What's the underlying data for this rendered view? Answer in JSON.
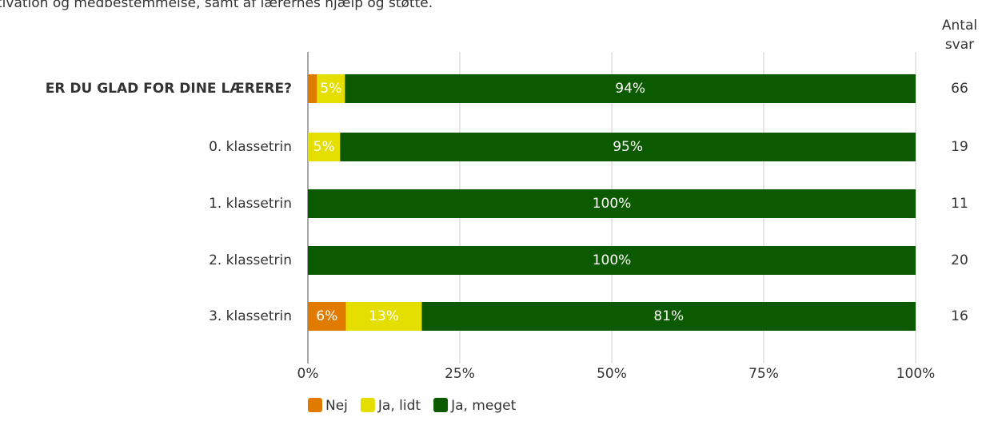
{
  "chart_data": {
    "type": "stacked_bar_horizontal",
    "subtitle": "tivation og medbestemmelse, samt af lærernes hjælp og støtte.",
    "categories": [
      "ER DU GLAD FOR DINE LÆRERE?",
      "0. klassetrin",
      "1. klassetrin",
      "2. klassetrin",
      "3. klassetrin"
    ],
    "series": [
      {
        "name": "Nej",
        "color": "#e07b00",
        "values": [
          1.5,
          0,
          0,
          0,
          6.25
        ],
        "value_labels": [
          null,
          null,
          null,
          null,
          "6%"
        ]
      },
      {
        "name": "Ja, lidt",
        "color": "#e5df00",
        "values": [
          4.6,
          5.3,
          0,
          0,
          12.5
        ],
        "value_labels": [
          "5%",
          "5%",
          null,
          null,
          "13%"
        ]
      },
      {
        "name": "Ja, meget",
        "color": "#0b5a00",
        "values": [
          93.9,
          94.7,
          100,
          100,
          81.25
        ],
        "value_labels": [
          "94%",
          "95%",
          "100%",
          "100%",
          "81%"
        ]
      }
    ],
    "xlim": [
      0,
      100
    ],
    "xticks": [
      {
        "value": 0,
        "label": "0%"
      },
      {
        "value": 25,
        "label": "25%"
      },
      {
        "value": 50,
        "label": "50%"
      },
      {
        "value": 75,
        "label": "75%"
      },
      {
        "value": 100,
        "label": "100%"
      }
    ],
    "grid": true,
    "counts_title": [
      "Antal",
      "svar"
    ],
    "counts": [
      66,
      19,
      11,
      20,
      16
    ],
    "legend": "bottom"
  }
}
